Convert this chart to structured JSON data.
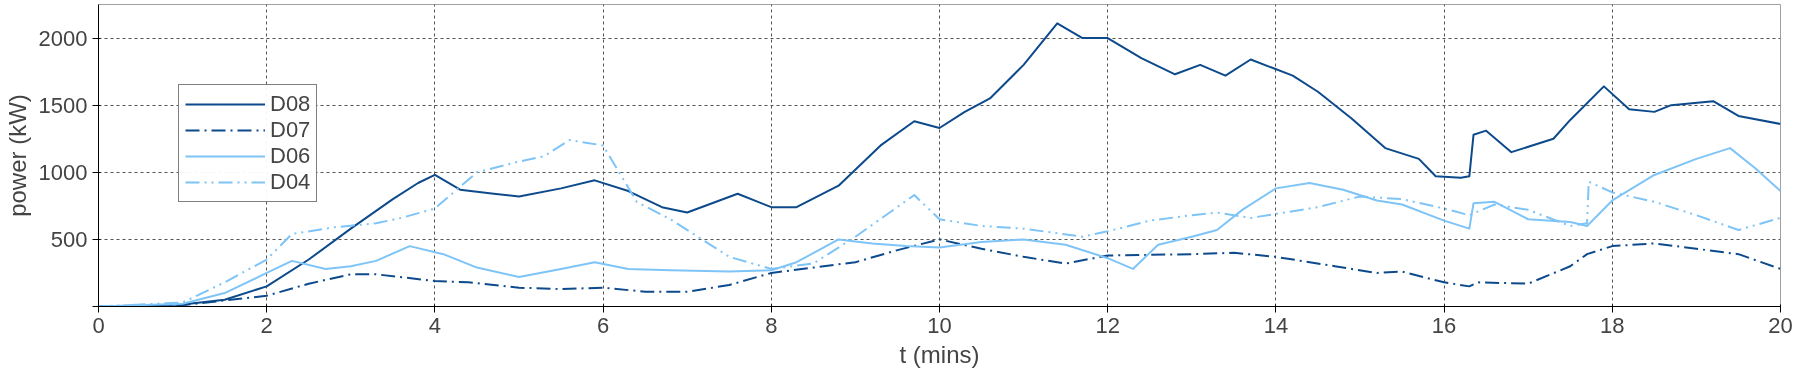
{
  "chart_data": {
    "type": "line",
    "xlabel": "t (mins)",
    "ylabel": "power (kW)",
    "xlim": [
      0,
      20
    ],
    "ylim": [
      0,
      2250
    ],
    "xticks": [
      0,
      2,
      4,
      6,
      8,
      10,
      12,
      14,
      16,
      18,
      20
    ],
    "yticks": [
      {
        "value": 0,
        "label": null
      },
      500,
      1000,
      1500,
      2000
    ],
    "grid": true,
    "legend": "top left",
    "series": [
      {
        "name": "D08",
        "color": "#0d4a8c",
        "line_style": "solid",
        "x": [
          0,
          1,
          1.5,
          2,
          2.5,
          3,
          3.5,
          3.8,
          4,
          4.3,
          4.7,
          5,
          5.5,
          5.9,
          6.3,
          6.7,
          7,
          7.6,
          8,
          8.3,
          8.8,
          9.3,
          9.7,
          10,
          10.3,
          10.6,
          11,
          11.4,
          11.7,
          12,
          12.4,
          12.8,
          13.1,
          13.4,
          13.7,
          14.2,
          14.5,
          14.9,
          15.3,
          15.7,
          15.9,
          16.2,
          16.3,
          16.35,
          16.5,
          16.8,
          17.3,
          17.5,
          17.9,
          18.2,
          18.5,
          18.7,
          19.2,
          19.5,
          20
        ],
        "values": [
          0,
          15,
          50,
          150,
          350,
          580,
          800,
          920,
          980,
          870,
          840,
          820,
          880,
          940,
          860,
          740,
          700,
          840,
          740,
          740,
          900,
          1200,
          1380,
          1330,
          1450,
          1550,
          1800,
          2110,
          2000,
          2000,
          1850,
          1730,
          1800,
          1720,
          1840,
          1720,
          1600,
          1400,
          1180,
          1100,
          970,
          960,
          970,
          1280,
          1310,
          1150,
          1250,
          1390,
          1640,
          1470,
          1450,
          1500,
          1530,
          1420,
          1360
        ]
      },
      {
        "name": "D07",
        "color": "#0d4a8c",
        "line_style": "dashdot",
        "x": [
          0,
          1,
          2,
          2.5,
          3,
          3.3,
          4,
          4.4,
          5,
          5.5,
          6,
          6.5,
          7,
          7.5,
          8,
          8.5,
          9,
          9.5,
          10,
          10.5,
          11,
          11.5,
          12,
          13,
          13.5,
          14,
          14.7,
          15.2,
          15.5,
          16,
          16.3,
          16.4,
          17,
          17.5,
          17.7,
          18,
          18.5,
          19,
          19.5,
          20
        ],
        "values": [
          0,
          10,
          80,
          170,
          240,
          240,
          190,
          180,
          140,
          130,
          140,
          110,
          110,
          160,
          250,
          290,
          330,
          420,
          500,
          430,
          370,
          320,
          380,
          390,
          400,
          370,
          300,
          250,
          260,
          180,
          150,
          180,
          170,
          300,
          390,
          450,
          470,
          430,
          390,
          280
        ]
      },
      {
        "name": "D06",
        "color": "#7fc4f7",
        "line_style": "solid",
        "x": [
          0,
          1,
          1.5,
          2,
          2.3,
          2.7,
          3,
          3.3,
          3.7,
          4.1,
          4.5,
          5,
          5.5,
          5.9,
          6.3,
          6.8,
          7.5,
          8,
          8.3,
          8.8,
          9.2,
          9.6,
          10,
          10.5,
          11,
          11.5,
          12,
          12.3,
          12.6,
          13,
          13.3,
          13.6,
          14,
          14.4,
          14.8,
          15.2,
          15.5,
          16,
          16.3,
          16.35,
          16.6,
          17,
          17.5,
          17.7,
          18,
          18.5,
          19,
          19.4,
          19.7,
          20
        ],
        "values": [
          0,
          20,
          100,
          250,
          340,
          280,
          300,
          340,
          450,
          390,
          290,
          220,
          280,
          330,
          280,
          270,
          260,
          270,
          330,
          500,
          470,
          450,
          440,
          480,
          500,
          460,
          360,
          280,
          460,
          520,
          570,
          720,
          880,
          920,
          870,
          790,
          760,
          640,
          580,
          770,
          780,
          650,
          630,
          600,
          790,
          980,
          1100,
          1180,
          1030,
          860
        ]
      },
      {
        "name": "D04",
        "color": "#7fc4f7",
        "line_style": "dashdotdot",
        "x": [
          0,
          1,
          1.5,
          2,
          2.3,
          2.8,
          3.3,
          3.6,
          4,
          4.5,
          5,
          5.3,
          5.6,
          6,
          6.4,
          6.8,
          7.5,
          8,
          8.5,
          9,
          9.7,
          10,
          10.5,
          11,
          11.7,
          12,
          12.5,
          13,
          13.3,
          13.7,
          14.5,
          15,
          15.5,
          16,
          16.3,
          16.6,
          17,
          17.5,
          17.7,
          17.72,
          18,
          18.5,
          19,
          19.5,
          20
        ],
        "values": [
          0,
          30,
          180,
          350,
          540,
          590,
          620,
          660,
          730,
          1000,
          1080,
          1120,
          1240,
          1200,
          780,
          650,
          370,
          280,
          320,
          520,
          830,
          650,
          600,
          580,
          520,
          560,
          640,
          680,
          700,
          660,
          740,
          820,
          800,
          730,
          680,
          760,
          720,
          600,
          620,
          930,
          850,
          780,
          680,
          570,
          660
        ]
      }
    ]
  }
}
